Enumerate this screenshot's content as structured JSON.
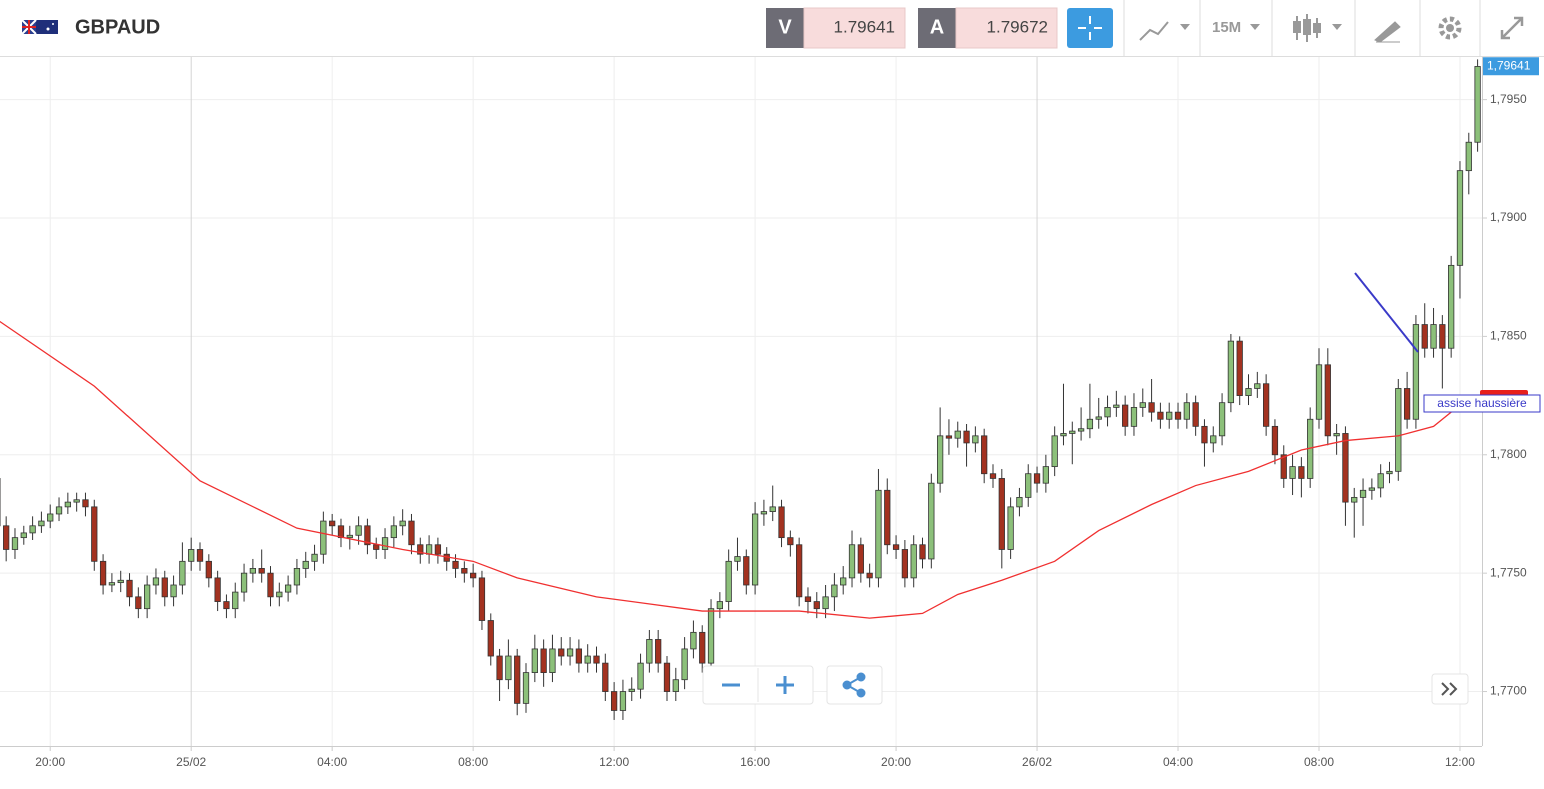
{
  "header": {
    "symbol": "GBPAUD",
    "bid_label": "V",
    "bid": 1.79641,
    "ask_label": "A",
    "ask": 1.79672,
    "timeframe": "15M"
  },
  "chart_data": {
    "type": "candlestick",
    "xlim": [
      0.3,
      168.5
    ],
    "ylim": [
      1.7677,
      1.7968
    ],
    "xticks": [
      {
        "value": 6,
        "label": "20:00"
      },
      {
        "value": 22,
        "label": "25/02"
      },
      {
        "value": 38,
        "label": "04:00"
      },
      {
        "value": 54,
        "label": "08:00"
      },
      {
        "value": 70,
        "label": "12:00"
      },
      {
        "value": 86,
        "label": "16:00"
      },
      {
        "value": 102,
        "label": "20:00"
      },
      {
        "value": 118,
        "label": "26/02"
      },
      {
        "value": 134,
        "label": "04:00"
      },
      {
        "value": 150,
        "label": "08:00"
      },
      {
        "value": 166,
        "label": "12:00"
      }
    ],
    "yticks": [
      {
        "value": 1.77,
        "label": "1,7700"
      },
      {
        "value": 1.775,
        "label": "1,7750"
      },
      {
        "value": 1.78,
        "label": "1,7800"
      },
      {
        "value": 1.785,
        "label": "1,7850"
      },
      {
        "value": 1.79,
        "label": "1,7900"
      },
      {
        "value": 1.795,
        "label": "1,7950"
      }
    ],
    "grid": true,
    "up_color": "#8cc07a",
    "down_color": "#a33220",
    "last_price": {
      "value": 1.79641,
      "label": "1,79641"
    },
    "annotation": "assise haussière",
    "moving_average": {
      "color": "#f03030",
      "x": [
        0,
        11,
        23,
        34,
        46,
        54,
        59,
        68,
        80,
        91,
        99,
        105,
        109,
        114,
        120,
        125,
        131,
        136,
        142,
        148,
        153,
        159,
        163,
        166
      ],
      "values": [
        1.7857,
        1.7829,
        1.7789,
        1.7769,
        1.776,
        1.7755,
        1.7748,
        1.774,
        1.7734,
        1.7734,
        1.7731,
        1.7733,
        1.7741,
        1.7747,
        1.7755,
        1.7768,
        1.7779,
        1.7787,
        1.7793,
        1.7802,
        1.7806,
        1.7808,
        1.7812,
        1.7821
      ]
    },
    "candles": [
      [
        1.779,
        1.7794,
        1.7766,
        1.777
      ],
      [
        1.777,
        1.7774,
        1.7755,
        1.776
      ],
      [
        1.776,
        1.7769,
        1.7756,
        1.7765
      ],
      [
        1.7765,
        1.777,
        1.7762,
        1.7767
      ],
      [
        1.7767,
        1.7774,
        1.7764,
        1.777
      ],
      [
        1.777,
        1.7776,
        1.7767,
        1.7772
      ],
      [
        1.7772,
        1.7779,
        1.7769,
        1.7775
      ],
      [
        1.7775,
        1.7782,
        1.7772,
        1.7778
      ],
      [
        1.7778,
        1.7784,
        1.7775,
        1.778
      ],
      [
        1.778,
        1.7784,
        1.7776,
        1.7781
      ],
      [
        1.7781,
        1.7784,
        1.7774,
        1.7778
      ],
      [
        1.7778,
        1.7781,
        1.7751,
        1.7755
      ],
      [
        1.7755,
        1.7758,
        1.7741,
        1.7745
      ],
      [
        1.7745,
        1.775,
        1.7742,
        1.7746
      ],
      [
        1.7746,
        1.7751,
        1.7742,
        1.7747
      ],
      [
        1.7747,
        1.775,
        1.7736,
        1.774
      ],
      [
        1.774,
        1.7744,
        1.7731,
        1.7735
      ],
      [
        1.7735,
        1.7749,
        1.7731,
        1.7745
      ],
      [
        1.7745,
        1.7752,
        1.7741,
        1.7748
      ],
      [
        1.7748,
        1.7751,
        1.7736,
        1.774
      ],
      [
        1.774,
        1.7749,
        1.7736,
        1.7745
      ],
      [
        1.7745,
        1.7763,
        1.7741,
        1.7755
      ],
      [
        1.7755,
        1.7765,
        1.7751,
        1.776
      ],
      [
        1.776,
        1.7763,
        1.7751,
        1.7755
      ],
      [
        1.7755,
        1.7758,
        1.7744,
        1.7748
      ],
      [
        1.7748,
        1.7751,
        1.7734,
        1.7738
      ],
      [
        1.7738,
        1.7741,
        1.7731,
        1.7735
      ],
      [
        1.7735,
        1.7746,
        1.7731,
        1.7742
      ],
      [
        1.7742,
        1.7754,
        1.7738,
        1.775
      ],
      [
        1.775,
        1.7756,
        1.7746,
        1.7752
      ],
      [
        1.7752,
        1.776,
        1.7746,
        1.775
      ],
      [
        1.775,
        1.7753,
        1.7736,
        1.774
      ],
      [
        1.774,
        1.7746,
        1.7736,
        1.7742
      ],
      [
        1.7742,
        1.7749,
        1.7738,
        1.7745
      ],
      [
        1.7745,
        1.7756,
        1.7741,
        1.7752
      ],
      [
        1.7752,
        1.7759,
        1.7748,
        1.7755
      ],
      [
        1.7755,
        1.7762,
        1.7751,
        1.7758
      ],
      [
        1.7758,
        1.7776,
        1.7754,
        1.7772
      ],
      [
        1.7772,
        1.7775,
        1.7766,
        1.777
      ],
      [
        1.777,
        1.7773,
        1.7761,
        1.7765
      ],
      [
        1.7765,
        1.777,
        1.776,
        1.7766
      ],
      [
        1.7766,
        1.7774,
        1.7762,
        1.777
      ],
      [
        1.777,
        1.7773,
        1.7758,
        1.7762
      ],
      [
        1.7762,
        1.7765,
        1.7756,
        1.776
      ],
      [
        1.776,
        1.7769,
        1.7756,
        1.7765
      ],
      [
        1.7765,
        1.7774,
        1.7761,
        1.777
      ],
      [
        1.777,
        1.7777,
        1.7766,
        1.7772
      ],
      [
        1.7772,
        1.7775,
        1.7758,
        1.7762
      ],
      [
        1.7762,
        1.7765,
        1.7754,
        1.7758
      ],
      [
        1.7758,
        1.7766,
        1.7754,
        1.7762
      ],
      [
        1.7762,
        1.7765,
        1.7754,
        1.7758
      ],
      [
        1.7758,
        1.7761,
        1.7751,
        1.7755
      ],
      [
        1.7755,
        1.7758,
        1.7748,
        1.7752
      ],
      [
        1.7752,
        1.7755,
        1.7746,
        1.775
      ],
      [
        1.775,
        1.7754,
        1.7744,
        1.7748
      ],
      [
        1.7748,
        1.7751,
        1.7726,
        1.773
      ],
      [
        1.773,
        1.7733,
        1.7711,
        1.7715
      ],
      [
        1.7715,
        1.7718,
        1.7696,
        1.7705
      ],
      [
        1.7705,
        1.7722,
        1.7701,
        1.7715
      ],
      [
        1.7715,
        1.7718,
        1.769,
        1.7695
      ],
      [
        1.7695,
        1.7712,
        1.7691,
        1.7708
      ],
      [
        1.7708,
        1.7724,
        1.7704,
        1.7718
      ],
      [
        1.7718,
        1.7722,
        1.7702,
        1.7708
      ],
      [
        1.7708,
        1.7724,
        1.7704,
        1.7718
      ],
      [
        1.7718,
        1.7723,
        1.7711,
        1.7715
      ],
      [
        1.7715,
        1.7723,
        1.7711,
        1.7718
      ],
      [
        1.7718,
        1.7722,
        1.7708,
        1.7712
      ],
      [
        1.7712,
        1.772,
        1.7708,
        1.7715
      ],
      [
        1.7715,
        1.7719,
        1.7708,
        1.7712
      ],
      [
        1.7712,
        1.7716,
        1.7696,
        1.77
      ],
      [
        1.77,
        1.7704,
        1.7688,
        1.7692
      ],
      [
        1.7692,
        1.7705,
        1.7688,
        1.77
      ],
      [
        1.77,
        1.7706,
        1.7696,
        1.7701
      ],
      [
        1.7701,
        1.7716,
        1.7697,
        1.7712
      ],
      [
        1.7712,
        1.7726,
        1.7708,
        1.7722
      ],
      [
        1.7722,
        1.7726,
        1.7708,
        1.7712
      ],
      [
        1.7712,
        1.7715,
        1.7696,
        1.77
      ],
      [
        1.77,
        1.771,
        1.7696,
        1.7705
      ],
      [
        1.7705,
        1.7723,
        1.7701,
        1.7718
      ],
      [
        1.7718,
        1.773,
        1.7714,
        1.7725
      ],
      [
        1.7725,
        1.7728,
        1.7708,
        1.7712
      ],
      [
        1.7712,
        1.7739,
        1.7708,
        1.7735
      ],
      [
        1.7735,
        1.7742,
        1.7731,
        1.7738
      ],
      [
        1.7738,
        1.776,
        1.7734,
        1.7755
      ],
      [
        1.7755,
        1.7765,
        1.7751,
        1.7757
      ],
      [
        1.7757,
        1.776,
        1.7741,
        1.7745
      ],
      [
        1.7745,
        1.778,
        1.7741,
        1.7775
      ],
      [
        1.7775,
        1.7781,
        1.777,
        1.7776
      ],
      [
        1.7776,
        1.7787,
        1.7772,
        1.7778
      ],
      [
        1.7778,
        1.7781,
        1.7761,
        1.7765
      ],
      [
        1.7765,
        1.7768,
        1.7757,
        1.7762
      ],
      [
        1.7762,
        1.7765,
        1.7736,
        1.774
      ],
      [
        1.774,
        1.7744,
        1.7733,
        1.7738
      ],
      [
        1.7738,
        1.7742,
        1.7731,
        1.7735
      ],
      [
        1.7735,
        1.7745,
        1.7731,
        1.774
      ],
      [
        1.774,
        1.775,
        1.7734,
        1.7745
      ],
      [
        1.7745,
        1.7753,
        1.7741,
        1.7748
      ],
      [
        1.7748,
        1.7768,
        1.7744,
        1.7762
      ],
      [
        1.7762,
        1.7765,
        1.7746,
        1.775
      ],
      [
        1.775,
        1.7754,
        1.7744,
        1.7748
      ],
      [
        1.7748,
        1.7794,
        1.7744,
        1.7785
      ],
      [
        1.7785,
        1.779,
        1.7758,
        1.7762
      ],
      [
        1.7762,
        1.7766,
        1.7756,
        1.776
      ],
      [
        1.776,
        1.7764,
        1.7744,
        1.7748
      ],
      [
        1.7748,
        1.7766,
        1.7744,
        1.7762
      ],
      [
        1.7762,
        1.7765,
        1.7752,
        1.7756
      ],
      [
        1.7756,
        1.7792,
        1.7752,
        1.7788
      ],
      [
        1.7788,
        1.782,
        1.7784,
        1.7808
      ],
      [
        1.7808,
        1.7815,
        1.78,
        1.7807
      ],
      [
        1.7807,
        1.7814,
        1.7803,
        1.781
      ],
      [
        1.781,
        1.7813,
        1.7795,
        1.7805
      ],
      [
        1.7805,
        1.7812,
        1.7801,
        1.7808
      ],
      [
        1.7808,
        1.7811,
        1.7788,
        1.7792
      ],
      [
        1.7792,
        1.7796,
        1.7786,
        1.779
      ],
      [
        1.779,
        1.7794,
        1.7752,
        1.776
      ],
      [
        1.776,
        1.7782,
        1.7756,
        1.7778
      ],
      [
        1.7778,
        1.7786,
        1.7774,
        1.7782
      ],
      [
        1.7782,
        1.7796,
        1.7778,
        1.7792
      ],
      [
        1.7792,
        1.7795,
        1.7784,
        1.7788
      ],
      [
        1.7788,
        1.78,
        1.7784,
        1.7795
      ],
      [
        1.7795,
        1.7812,
        1.7791,
        1.7808
      ],
      [
        1.7808,
        1.783,
        1.7804,
        1.7809
      ],
      [
        1.7809,
        1.7814,
        1.7796,
        1.781
      ],
      [
        1.781,
        1.782,
        1.7806,
        1.7811
      ],
      [
        1.7811,
        1.783,
        1.7807,
        1.7815
      ],
      [
        1.7815,
        1.7824,
        1.7811,
        1.7816
      ],
      [
        1.7816,
        1.7825,
        1.7812,
        1.782
      ],
      [
        1.782,
        1.7827,
        1.7816,
        1.7821
      ],
      [
        1.7821,
        1.7825,
        1.7808,
        1.7812
      ],
      [
        1.7812,
        1.7826,
        1.7808,
        1.782
      ],
      [
        1.782,
        1.7828,
        1.7816,
        1.7822
      ],
      [
        1.7822,
        1.7832,
        1.7814,
        1.7818
      ],
      [
        1.7818,
        1.7822,
        1.7811,
        1.7815
      ],
      [
        1.7815,
        1.7822,
        1.7811,
        1.7818
      ],
      [
        1.7818,
        1.7822,
        1.7811,
        1.7815
      ],
      [
        1.7815,
        1.7826,
        1.7811,
        1.7822
      ],
      [
        1.7822,
        1.7825,
        1.7808,
        1.7812
      ],
      [
        1.7812,
        1.7815,
        1.7795,
        1.7805
      ],
      [
        1.7805,
        1.7812,
        1.7801,
        1.7808
      ],
      [
        1.7808,
        1.7826,
        1.7804,
        1.7822
      ],
      [
        1.7822,
        1.7851,
        1.7818,
        1.7848
      ],
      [
        1.7848,
        1.785,
        1.7821,
        1.7825
      ],
      [
        1.7825,
        1.7834,
        1.7821,
        1.7828
      ],
      [
        1.7828,
        1.7835,
        1.7824,
        1.783
      ],
      [
        1.783,
        1.7834,
        1.7808,
        1.7812
      ],
      [
        1.7812,
        1.7815,
        1.7796,
        1.78
      ],
      [
        1.78,
        1.7804,
        1.7786,
        1.779
      ],
      [
        1.779,
        1.78,
        1.7783,
        1.7795
      ],
      [
        1.7795,
        1.7799,
        1.7782,
        1.779
      ],
      [
        1.779,
        1.782,
        1.7786,
        1.7815
      ],
      [
        1.7815,
        1.7845,
        1.7811,
        1.7838
      ],
      [
        1.7838,
        1.7845,
        1.7804,
        1.7808
      ],
      [
        1.7808,
        1.7813,
        1.78,
        1.7809
      ],
      [
        1.7809,
        1.7812,
        1.777,
        1.778
      ],
      [
        1.778,
        1.7786,
        1.7765,
        1.7782
      ],
      [
        1.7782,
        1.779,
        1.777,
        1.7785
      ],
      [
        1.7785,
        1.779,
        1.7781,
        1.7786
      ],
      [
        1.7786,
        1.7796,
        1.7782,
        1.7792
      ],
      [
        1.7792,
        1.7797,
        1.7788,
        1.7793
      ],
      [
        1.7793,
        1.7832,
        1.7789,
        1.7828
      ],
      [
        1.7828,
        1.7835,
        1.7811,
        1.7815
      ],
      [
        1.7815,
        1.7859,
        1.7811,
        1.7855
      ],
      [
        1.7855,
        1.7864,
        1.7841,
        1.7845
      ],
      [
        1.7845,
        1.7862,
        1.7841,
        1.7855
      ],
      [
        1.7855,
        1.7859,
        1.7828,
        1.7845
      ],
      [
        1.7845,
        1.7884,
        1.7841,
        1.788
      ],
      [
        1.788,
        1.7924,
        1.7866,
        1.792
      ],
      [
        1.792,
        1.7936,
        1.791,
        1.7932
      ],
      [
        1.7932,
        1.7967,
        1.7928,
        1.7964
      ]
    ]
  }
}
